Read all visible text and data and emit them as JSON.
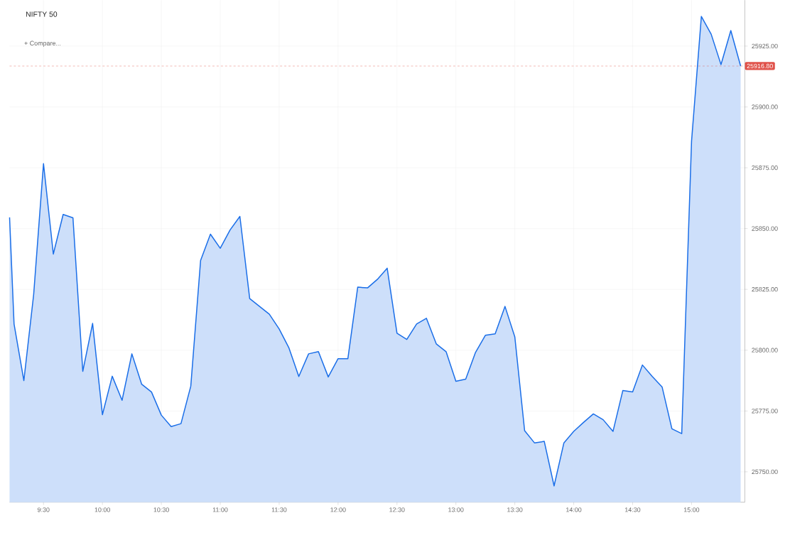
{
  "chart_data": {
    "type": "area",
    "title": "NIFTY 50",
    "annotations": [
      "+ Compare..."
    ],
    "x": [
      9.212,
      9.25,
      9.3333,
      9.4167,
      9.5,
      9.5833,
      9.6667,
      9.75,
      9.8333,
      9.9167,
      10.0,
      10.0833,
      10.1667,
      10.25,
      10.3333,
      10.4167,
      10.5,
      10.5833,
      10.6667,
      10.75,
      10.8333,
      10.9167,
      11.0,
      11.0833,
      11.1667,
      11.25,
      11.3333,
      11.4167,
      11.5,
      11.5833,
      11.6667,
      11.75,
      11.8333,
      11.9167,
      12.0,
      12.0833,
      12.1667,
      12.25,
      12.3333,
      12.4167,
      12.5,
      12.5833,
      12.6667,
      12.75,
      12.8333,
      12.9167,
      13.0,
      13.0833,
      13.1667,
      13.25,
      13.3333,
      13.4167,
      13.5,
      13.5833,
      13.6667,
      13.75,
      13.8333,
      13.9167,
      14.0,
      14.0833,
      14.1667,
      14.25,
      14.3333,
      14.4167,
      14.5,
      14.5833,
      14.6667,
      14.75,
      14.8333,
      14.9167,
      15.0,
      15.0833,
      15.1667,
      15.25,
      15.3333,
      15.4167
    ],
    "series": [
      {
        "color": "#1a6ee8",
        "line_style": "solid",
        "marker": "none",
        "values": [
          25854.6,
          25810.8,
          25787.5,
          25823,
          25876.7,
          25839.5,
          25855.8,
          25854.4,
          25791.3,
          25811,
          25773.5,
          25789.3,
          25779.4,
          25798.5,
          25786,
          25782.8,
          25773.3,
          25768.6,
          25769.8,
          25785.2,
          25836.9,
          25847.7,
          25841.9,
          25849.4,
          25855,
          25821.2,
          25818,
          25814.8,
          25808.7,
          25800.9,
          25789.2,
          25798.5,
          25799.4,
          25789,
          25796.5,
          25796.5,
          25825.9,
          25825.6,
          25829.1,
          25833.7,
          25807,
          25804.4,
          25810.8,
          25813.1,
          25802.6,
          25799.4,
          25787.2,
          25788.1,
          25799.1,
          25806.1,
          25806.7,
          25818,
          25805.5,
          25766.9,
          25761.9,
          25762.5,
          25744.2,
          25761.9,
          25766.6,
          25770.3,
          25773.8,
          25771.4,
          25766.6,
          25783.4,
          25782.8,
          25793.9,
          25789.2,
          25784.9,
          25767.7,
          25765.7,
          25885.8,
          25937.2,
          25929.9,
          25917.4,
          25931.4,
          25916.8
        ]
      }
    ],
    "xlim": [
      9.212,
      15.452
    ],
    "xticks": [
      {
        "value": 9.5,
        "label": "9:30"
      },
      {
        "value": 10,
        "label": "10:00"
      },
      {
        "value": 10.5,
        "label": "10:30"
      },
      {
        "value": 11,
        "label": "11:00"
      },
      {
        "value": 11.5,
        "label": "11:30"
      },
      {
        "value": 12,
        "label": "12:00"
      },
      {
        "value": 12.5,
        "label": "12:30"
      },
      {
        "value": 13,
        "label": "13:00"
      },
      {
        "value": 13.5,
        "label": "13:30"
      },
      {
        "value": 14,
        "label": "14:00"
      },
      {
        "value": 14.5,
        "label": "14:30"
      },
      {
        "value": 15,
        "label": "15:00"
      }
    ],
    "ylim": [
      25737.5,
      25943.9
    ],
    "yticks": [
      {
        "value": 25750,
        "label": "25750.00"
      },
      {
        "value": 25775,
        "label": "25775.00"
      },
      {
        "value": 25800,
        "label": "25800.00"
      },
      {
        "value": 25825,
        "label": "25825.00"
      },
      {
        "value": 25850,
        "label": "25850.00"
      },
      {
        "value": 25875,
        "label": "25875.00"
      },
      {
        "value": 25900,
        "label": "25900.00"
      },
      {
        "value": 25925,
        "label": "25925.00"
      }
    ],
    "grid": true,
    "ref_lines": [
      {
        "axis": "y",
        "value": 25916.8,
        "label": "25916.80",
        "color": "#e0524a",
        "line_style": "dashed"
      }
    ]
  }
}
